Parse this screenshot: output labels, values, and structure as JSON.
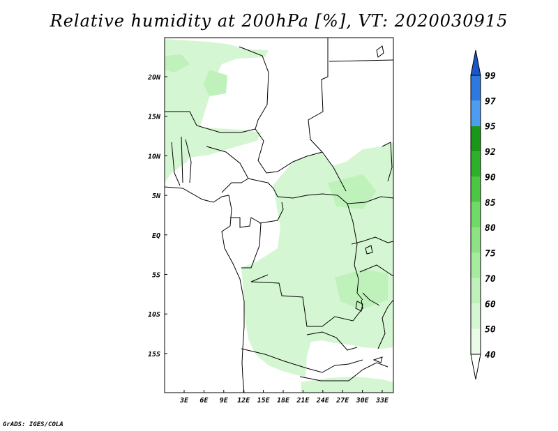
{
  "title": "Relative humidity at 200hPa [%], VT: 2020030915",
  "credit": "GrADS: IGES/COLA",
  "map": {
    "lat_labels": [
      "20N",
      "15N",
      "10N",
      "5N",
      "EQ",
      "5S",
      "10S",
      "15S"
    ],
    "lon_labels": [
      "3E",
      "6E",
      "9E",
      "12E",
      "15E",
      "18E",
      "21E",
      "24E",
      "27E",
      "30E",
      "33E"
    ]
  },
  "colorbar": {
    "levels": [
      "40",
      "50",
      "60",
      "70",
      "75",
      "80",
      "85",
      "90",
      "92",
      "95",
      "97",
      "99"
    ],
    "colors": [
      "#ffffff",
      "#eafbe8",
      "#d5f6d2",
      "#bff2bb",
      "#a6ec9f",
      "#8de383",
      "#6fda66",
      "#4bc744",
      "#2db12b",
      "#189718",
      "#4e9cf0",
      "#2e79e0",
      "#1a56c8"
    ]
  }
}
